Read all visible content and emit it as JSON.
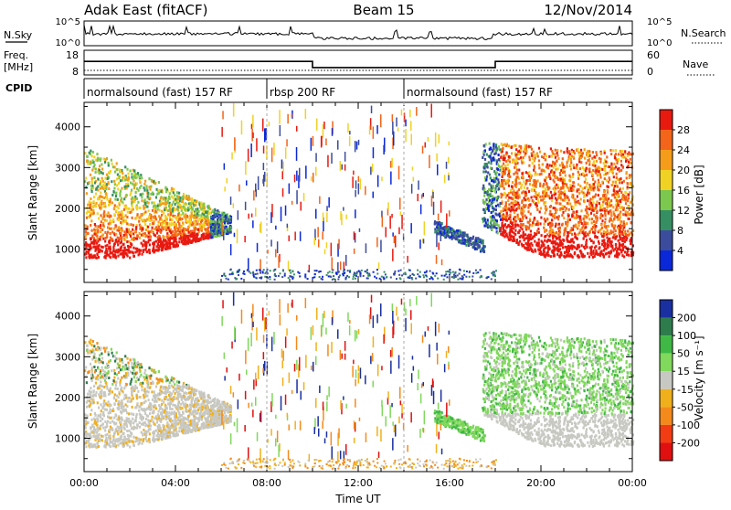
{
  "header": {
    "station": "Adak East (fitACF)",
    "beam": "Beam 15",
    "date": "12/Nov/2014"
  },
  "summary": {
    "nsky_label": "N.Sky",
    "nsky_ticks": [
      "10^5",
      "10^0"
    ],
    "nsearch_label": "N.Search",
    "nsearch_ticks": [
      "10^5",
      "10^0"
    ],
    "freq_label_line1": "Freq.",
    "freq_label_line2": "[MHz]",
    "freq_ticks": [
      "18",
      "8"
    ],
    "nave_label": "Nave",
    "nave_ticks": [
      "60",
      "0"
    ],
    "cpid_label": "CPID",
    "cpid_segments": [
      {
        "start": 0,
        "end": 8,
        "label": "normalsound (fast) 157 RF"
      },
      {
        "start": 8,
        "end": 14,
        "label": "rbsp 200 RF"
      },
      {
        "start": 14,
        "end": 24,
        "label": "normalsound (fast) 157 RF"
      }
    ],
    "frequency_steps_mhz": [
      {
        "from": 0,
        "to": 10,
        "value": 13.5
      },
      {
        "from": 10,
        "to": 18,
        "value": 11
      },
      {
        "from": 18,
        "to": 24,
        "value": 13.5
      }
    ]
  },
  "chart_data": [
    {
      "type": "heatmap",
      "title": "",
      "xlabel": "",
      "ylabel": "Slant Range [km]",
      "xlim": [
        0,
        24
      ],
      "ylim": [
        180,
        4600
      ],
      "yticks": [
        "1000",
        "2000",
        "3000",
        "4000"
      ],
      "colorbar_label": "Power [dB]",
      "colorbar_ticks": [
        "4",
        "8",
        "12",
        "16",
        "20",
        "24",
        "28"
      ],
      "colorbar_range": [
        0,
        32
      ],
      "colors": [
        "#0b28d8",
        "#3c4c9c",
        "#368f62",
        "#7cc84e",
        "#f0d224",
        "#f59d1a",
        "#f2651a",
        "#e81a10"
      ]
    },
    {
      "type": "heatmap",
      "title": "",
      "xlabel": "Time UT",
      "ylabel": "Slant Range [km]",
      "xlim": [
        0,
        24
      ],
      "ylim": [
        180,
        4600
      ],
      "xticks": [
        "00:00",
        "04:00",
        "08:00",
        "12:00",
        "16:00",
        "20:00",
        "00:00"
      ],
      "yticks": [
        "1000",
        "2000",
        "3000",
        "4000"
      ],
      "colorbar_label": "Velocity [m s⁻¹]",
      "colorbar_ticks": [
        "200",
        "100",
        "50",
        "15",
        "-15",
        "-50",
        "-100",
        "-200"
      ],
      "colors": [
        "#1a2fa0",
        "#2e7c4c",
        "#3fb845",
        "#80d85c",
        "#c8c8c2",
        "#f0b01c",
        "#f48a1c",
        "#f23c14",
        "#e01010"
      ]
    }
  ]
}
